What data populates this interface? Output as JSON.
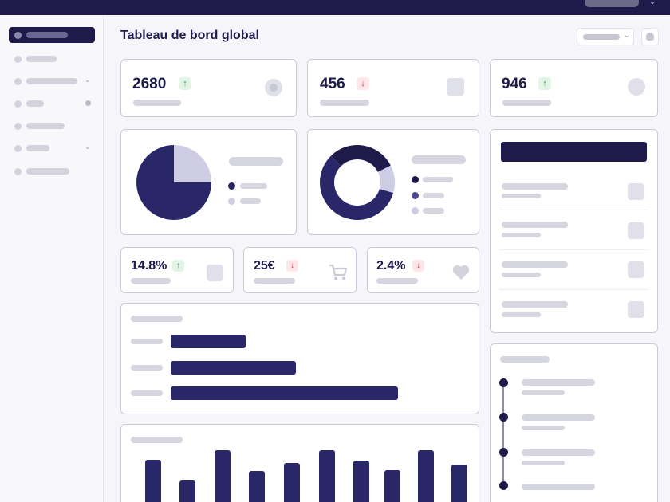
{
  "header": {
    "title": "Tableau de bord global"
  },
  "kpis_large": [
    {
      "value": "2680",
      "trend": "up"
    },
    {
      "value": "456",
      "trend": "down"
    },
    {
      "value": "946",
      "trend": "up"
    }
  ],
  "kpis_small": [
    {
      "value": "14.8%",
      "trend": "up",
      "icon": "square-icon"
    },
    {
      "value": "25€",
      "trend": "down",
      "icon": "cart-icon"
    },
    {
      "value": "2.4%",
      "trend": "down",
      "icon": "heart-icon"
    }
  ],
  "icons": {
    "up": "↑",
    "down": "↓",
    "chevron": "⌄"
  },
  "colors": {
    "primary": "#1e1b4b",
    "accent_light": "#cfcde6",
    "up": "#2e9e49",
    "down": "#d83b4a"
  },
  "pie_chart": {
    "type": "pie",
    "slices": [
      0.75,
      0.25
    ]
  },
  "donut_chart": {
    "type": "donut",
    "slices": [
      0.3,
      0.12,
      0.58
    ]
  },
  "hbar_chart": {
    "type": "bar",
    "orientation": "horizontal",
    "values": [
      0.33,
      0.55,
      1.0
    ]
  },
  "vbar_chart": {
    "type": "bar",
    "values": [
      0.82,
      0.42,
      1.0,
      0.61,
      0.75,
      1.0,
      0.8,
      0.62,
      1.0,
      0.72
    ]
  }
}
